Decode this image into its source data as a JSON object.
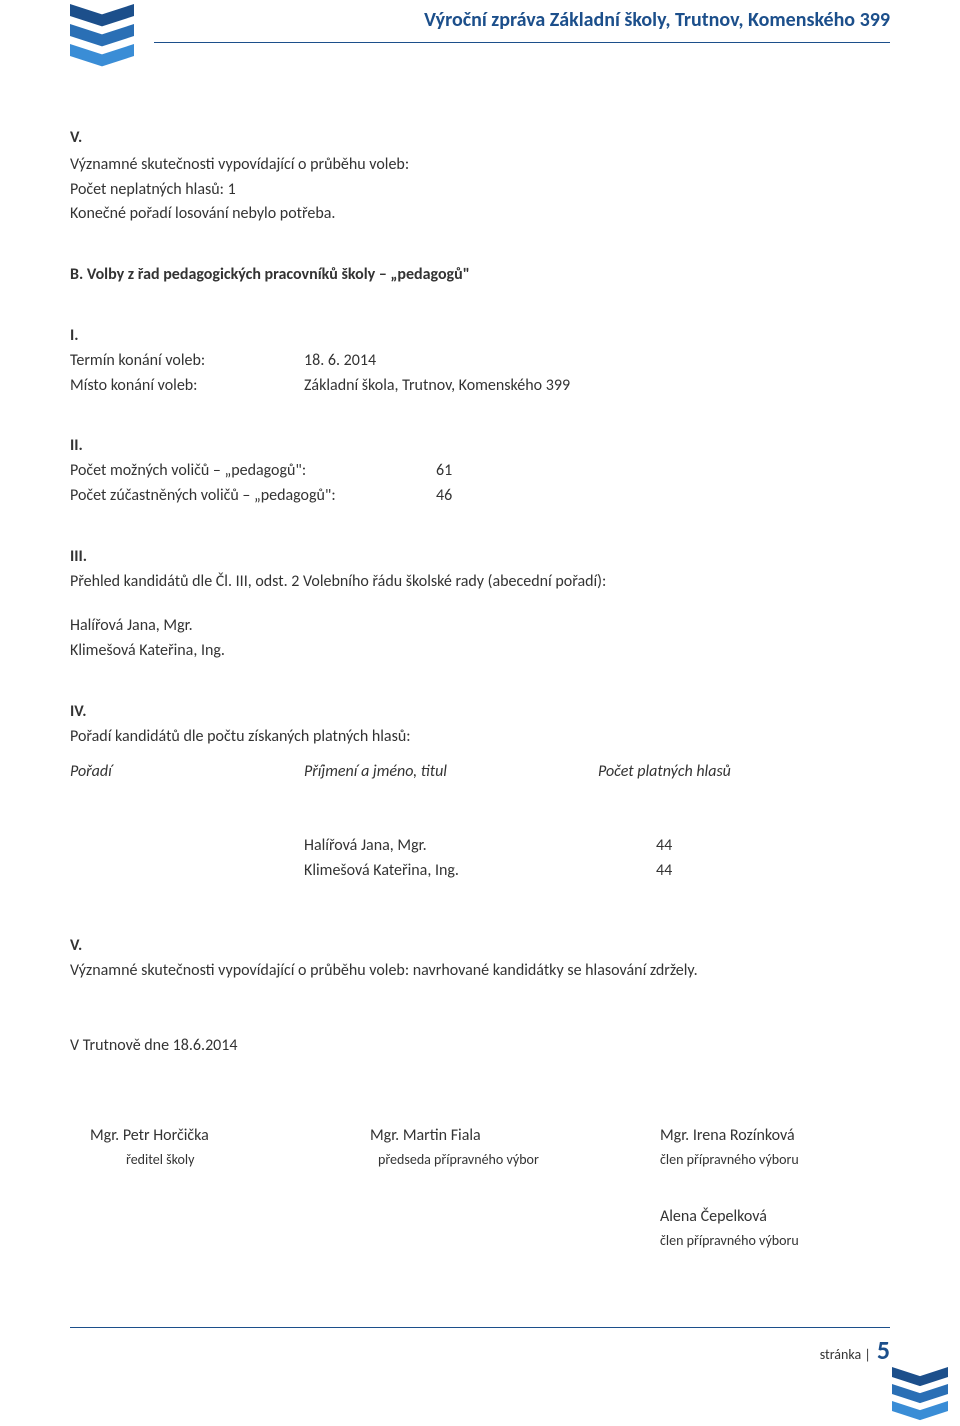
{
  "header": {
    "title": "Výroční zpráva Základní školy, Trutnov, Komenského 399",
    "accent_color": "#1c4f8b"
  },
  "sec_v_top": {
    "num": "V.",
    "line1": "Významné skutečnosti vypovídající o průběhu voleb:",
    "line2": "Počet neplatných hlasů: 1",
    "line3": "Konečné pořadí losování nebylo potřeba."
  },
  "sec_b": {
    "title": "B. Volby z řad pedagogických pracovníků školy – „pedagogů\""
  },
  "sec_i": {
    "num": "I.",
    "rows": [
      {
        "label": "Termín konání voleb:",
        "value": "18. 6. 2014"
      },
      {
        "label": "Místo konání voleb:",
        "value": "Základní škola, Trutnov, Komenského 399"
      }
    ]
  },
  "sec_ii": {
    "num": "II.",
    "rows": [
      {
        "label": "Počet možných voličů – „pedagogů\":",
        "value": "61"
      },
      {
        "label": "Počet zúčastněných voličů – „pedagogů\":",
        "value": "46"
      }
    ]
  },
  "sec_iii": {
    "num": "III.",
    "intro": "Přehled kandidátů dle Čl. III, odst. 2 Volebního řádu školské rady (abecední pořadí):",
    "candidates": [
      "Halířová Jana, Mgr.",
      "Klimešová Kateřina, Ing."
    ]
  },
  "sec_iv": {
    "num": "IV.",
    "intro": "Pořadí kandidátů dle počtu získaných platných hlasů:",
    "header": {
      "col1": "Pořadí",
      "col2": "Příjmení a jméno, titul",
      "col3": "Počet platných hlasů"
    },
    "rows": [
      {
        "name": "Halířová Jana, Mgr.",
        "votes": "44"
      },
      {
        "name": "Klimešová Kateřina, Ing.",
        "votes": "44"
      }
    ]
  },
  "sec_v_bottom": {
    "num": "V.",
    "text": "Významné skutečnosti vypovídající o průběhu voleb: navrhované kandidátky se hlasování zdržely."
  },
  "date_line": "V Trutnově dne 18.6.2014",
  "signatures": {
    "col1": {
      "name": "Mgr. Petr Horčička",
      "role": "ředitel školy"
    },
    "col2": {
      "name": "Mgr. Martin Fiala",
      "role": "předseda přípravného výbor"
    },
    "col3": {
      "name": "Mgr. Irena Rozínková",
      "role": "člen přípravného výboru"
    },
    "col3b": {
      "name": "Alena Čepelková",
      "role": "člen přípravného výboru"
    }
  },
  "footer": {
    "label": "stránka |",
    "page": "5"
  }
}
